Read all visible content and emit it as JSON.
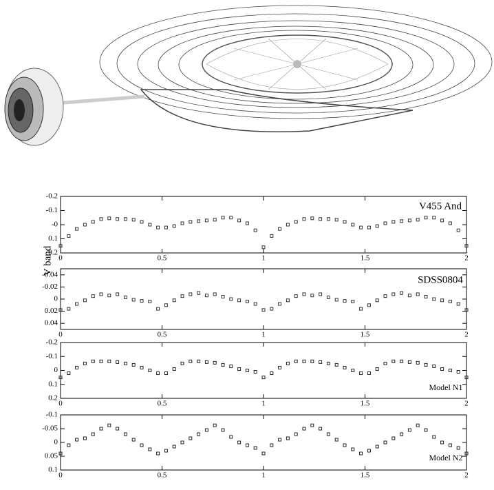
{
  "chart_data": [
    {
      "type": "scatter",
      "annotation": "V455 And",
      "ylabel": "V band",
      "color": "#333333",
      "x": [
        0,
        0.04,
        0.08,
        0.12,
        0.16,
        0.2,
        0.24,
        0.28,
        0.32,
        0.36,
        0.4,
        0.44,
        0.48,
        0.52,
        0.56,
        0.6,
        0.64,
        0.68,
        0.72,
        0.76,
        0.8,
        0.84,
        0.88,
        0.92,
        0.96,
        1,
        1.04,
        1.08,
        1.12,
        1.16,
        1.2,
        1.24,
        1.28,
        1.32,
        1.36,
        1.4,
        1.44,
        1.48,
        1.52,
        1.56,
        1.6,
        1.64,
        1.68,
        1.72,
        1.76,
        1.8,
        1.84,
        1.88,
        1.92,
        1.96,
        2
      ],
      "values": [
        0.15,
        0.08,
        0.03,
        0,
        -0.02,
        -0.04,
        -0.045,
        -0.04,
        -0.04,
        -0.035,
        -0.02,
        0,
        0.02,
        0.02,
        0.01,
        -0.01,
        -0.02,
        -0.025,
        -0.03,
        -0.035,
        -0.05,
        -0.05,
        -0.03,
        -0.01,
        0.04,
        0.16,
        0.08,
        0.03,
        0,
        -0.02,
        -0.04,
        -0.045,
        -0.04,
        -0.04,
        -0.035,
        -0.02,
        0,
        0.02,
        0.02,
        0.01,
        -0.01,
        -0.02,
        -0.025,
        -0.03,
        -0.035,
        -0.05,
        -0.05,
        -0.03,
        -0.01,
        0.04,
        0.15
      ],
      "xlim": [
        0,
        2
      ],
      "ylim": [
        0.2,
        -0.2
      ],
      "xticks": [
        0,
        0.5,
        1,
        1.5,
        2
      ],
      "yticks": [
        -0.2,
        -0.1,
        {
          "value": 0,
          "label": "-0"
        },
        0.1,
        0.2
      ]
    },
    {
      "type": "scatter",
      "annotation": "SDSS0804",
      "color": "#333333",
      "x": [
        0,
        0.04,
        0.08,
        0.12,
        0.16,
        0.2,
        0.24,
        0.28,
        0.32,
        0.36,
        0.4,
        0.44,
        0.48,
        0.52,
        0.56,
        0.6,
        0.64,
        0.68,
        0.72,
        0.76,
        0.8,
        0.84,
        0.88,
        0.92,
        0.96,
        1,
        1.04,
        1.08,
        1.12,
        1.16,
        1.2,
        1.24,
        1.28,
        1.32,
        1.36,
        1.4,
        1.44,
        1.48,
        1.52,
        1.56,
        1.6,
        1.64,
        1.68,
        1.72,
        1.76,
        1.8,
        1.84,
        1.88,
        1.92,
        1.96,
        2
      ],
      "values": [
        0.018,
        0.016,
        0.008,
        0.002,
        -0.005,
        -0.008,
        -0.006,
        -0.008,
        -0.003,
        0.001,
        0.003,
        0.004,
        0.016,
        0.01,
        0.002,
        -0.005,
        -0.008,
        -0.01,
        -0.006,
        -0.008,
        -0.004,
        0,
        0.002,
        0.004,
        0.008,
        0.018,
        0.016,
        0.008,
        0.002,
        -0.005,
        -0.008,
        -0.006,
        -0.008,
        -0.003,
        0.001,
        0.003,
        0.004,
        0.016,
        0.01,
        0.002,
        -0.005,
        -0.008,
        -0.01,
        -0.006,
        -0.008,
        -0.004,
        0,
        0.002,
        0.004,
        0.008,
        0.018
      ],
      "xlim": [
        0,
        2
      ],
      "ylim": [
        0.05,
        -0.05
      ],
      "xticks": [
        0,
        0.5,
        1,
        1.5,
        2
      ],
      "yticks": [
        -0.04,
        -0.02,
        0,
        0.02,
        0.04
      ]
    },
    {
      "type": "scatter",
      "annotation": "Model N1",
      "color": "#222222",
      "x": [
        0,
        0.04,
        0.08,
        0.12,
        0.16,
        0.2,
        0.24,
        0.28,
        0.32,
        0.36,
        0.4,
        0.44,
        0.48,
        0.52,
        0.56,
        0.6,
        0.64,
        0.68,
        0.72,
        0.76,
        0.8,
        0.84,
        0.88,
        0.92,
        0.96,
        1,
        1.04,
        1.08,
        1.12,
        1.16,
        1.2,
        1.24,
        1.28,
        1.32,
        1.36,
        1.4,
        1.44,
        1.48,
        1.52,
        1.56,
        1.6,
        1.64,
        1.68,
        1.72,
        1.76,
        1.8,
        1.84,
        1.88,
        1.92,
        1.96,
        2
      ],
      "values": [
        0.05,
        0.02,
        -0.02,
        -0.05,
        -0.065,
        -0.065,
        -0.065,
        -0.06,
        -0.05,
        -0.04,
        -0.02,
        0,
        0.02,
        0.02,
        -0.01,
        -0.05,
        -0.065,
        -0.065,
        -0.06,
        -0.055,
        -0.04,
        -0.03,
        -0.01,
        0,
        0.01,
        0.05,
        0.02,
        -0.02,
        -0.05,
        -0.065,
        -0.065,
        -0.065,
        -0.06,
        -0.05,
        -0.04,
        -0.02,
        0,
        0.02,
        0.02,
        -0.01,
        -0.05,
        -0.065,
        -0.065,
        -0.06,
        -0.055,
        -0.04,
        -0.03,
        -0.01,
        0,
        0.01,
        0.05
      ],
      "xlim": [
        0,
        2
      ],
      "ylim": [
        0.2,
        -0.2
      ],
      "xticks": [
        0,
        0.5,
        1,
        1.5,
        2
      ],
      "yticks": [
        -0.2,
        -0.1,
        0,
        0.1,
        0.2
      ]
    },
    {
      "type": "scatter",
      "annotation": "Model N2",
      "color": "#222222",
      "x": [
        0,
        0.04,
        0.08,
        0.12,
        0.16,
        0.2,
        0.24,
        0.28,
        0.32,
        0.36,
        0.4,
        0.44,
        0.48,
        0.52,
        0.56,
        0.6,
        0.64,
        0.68,
        0.72,
        0.76,
        0.8,
        0.84,
        0.88,
        0.92,
        0.96,
        1,
        1.04,
        1.08,
        1.12,
        1.16,
        1.2,
        1.24,
        1.28,
        1.32,
        1.36,
        1.4,
        1.44,
        1.48,
        1.52,
        1.56,
        1.6,
        1.64,
        1.68,
        1.72,
        1.76,
        1.8,
        1.84,
        1.88,
        1.92,
        1.96,
        2
      ],
      "values": [
        0.04,
        0.01,
        -0.01,
        -0.015,
        -0.03,
        -0.05,
        -0.062,
        -0.05,
        -0.03,
        -0.01,
        0.01,
        0.025,
        0.04,
        0.03,
        0.015,
        0,
        -0.015,
        -0.03,
        -0.045,
        -0.062,
        -0.045,
        -0.02,
        0,
        0.01,
        0.02,
        0.04,
        0.01,
        -0.01,
        -0.015,
        -0.03,
        -0.05,
        -0.062,
        -0.05,
        -0.03,
        -0.01,
        0.01,
        0.025,
        0.04,
        0.03,
        0.015,
        0,
        -0.015,
        -0.03,
        -0.045,
        -0.062,
        -0.045,
        -0.02,
        0,
        0.01,
        0.02,
        0.04
      ],
      "xlim": [
        0,
        2
      ],
      "ylim": [
        0.1,
        -0.1
      ],
      "xticks": [
        0,
        0.5,
        1,
        1.5,
        2
      ],
      "yticks": [
        -0.1,
        -0.05,
        0,
        0.05,
        0.1
      ]
    }
  ]
}
